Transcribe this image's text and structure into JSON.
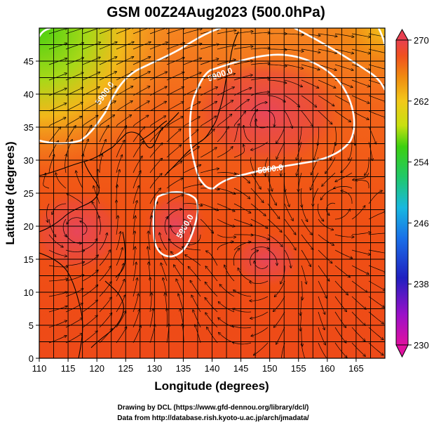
{
  "title": "GSM 00Z24Aug2023 (500.0hPa)",
  "map": {
    "xlabel": "Longitude (degrees)",
    "ylabel": "Latitude  (degrees)",
    "xlim": [
      110,
      170
    ],
    "ylim": [
      0,
      50
    ],
    "x_ticks": [
      "110",
      "115",
      "120",
      "125",
      "130",
      "135",
      "140",
      "145",
      "150",
      "155",
      "160",
      "165"
    ],
    "y_ticks": [
      "0",
      "5",
      "10",
      "15",
      "20",
      "25",
      "30",
      "35",
      "40",
      "45"
    ],
    "grid": true,
    "field": "temperature (shaded)",
    "contour_labels": [
      "5900.0",
      "5900.0",
      "5900.0",
      "5900.0"
    ],
    "colors": {
      "high": "#e8463a",
      "mid_high": "#f06a10",
      "mid": "#f2b11a",
      "low": "#4ad011",
      "contour": "#ffffff"
    }
  },
  "colorbar": {
    "min": 230,
    "max": 270,
    "ticks": [
      "270",
      "262",
      "254",
      "246",
      "238",
      "230"
    ],
    "colors": [
      "#e0108c",
      "#9a10c8",
      "#2020c0",
      "#1a70e8",
      "#18b8e0",
      "#20c86a",
      "#3cd010",
      "#c8e010",
      "#f2c81a",
      "#f08a10",
      "#f05020",
      "#e84050"
    ]
  },
  "credits": {
    "line1": "Drawing by DCL (https://www.gfd-dennou.org/library/dcl/)",
    "line2": "Data from http://database.rish.kyoto-u.ac.jp/arch/jmadata/"
  }
}
